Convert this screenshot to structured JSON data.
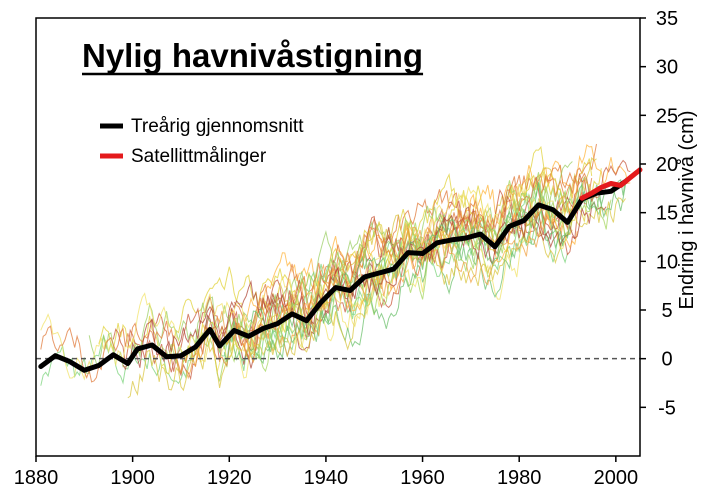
{
  "chart_data": {
    "type": "line",
    "title": "Nylig havnivåstigning",
    "xlabel": "",
    "ylabel": "Endring i havnivå (cm)",
    "xlim": [
      1880,
      2005
    ],
    "ylim": [
      -10,
      35
    ],
    "xticks": [
      1880,
      1900,
      1920,
      1940,
      1960,
      1980,
      2000
    ],
    "yticks": [
      -5,
      0,
      5,
      10,
      15,
      20,
      25,
      30,
      35
    ],
    "grid": false,
    "legend_position": "top-left",
    "zero_line": "dashed",
    "colors": {
      "average": "#000000",
      "satellite": "#e41a1c",
      "zero_line": "#555555",
      "frame": "#000000",
      "tide_gauges": [
        "#7bd37b",
        "#e0d23a",
        "#ffb43c",
        "#c85a3c",
        "#a4d65e",
        "#f2e36a",
        "#e07a3a",
        "#9ccf66",
        "#d9c640",
        "#f0a040",
        "#b0483a",
        "#6cc06c"
      ]
    },
    "series": [
      {
        "name": "Treårig gjennomsnitt",
        "x": [
          1881,
          1884,
          1887,
          1890,
          1893,
          1896,
          1899,
          1901,
          1904,
          1907,
          1910,
          1913,
          1916,
          1918,
          1921,
          1924,
          1927,
          1930,
          1933,
          1936,
          1939,
          1942,
          1945,
          1948,
          1951,
          1954,
          1957,
          1960,
          1963,
          1966,
          1969,
          1972,
          1975,
          1978,
          1981,
          1984,
          1987,
          1990,
          1993,
          1996,
          1999,
          2002
        ],
        "values": [
          -0.8,
          0.3,
          -0.3,
          -1.2,
          -0.7,
          0.4,
          -0.5,
          1.0,
          1.4,
          0.2,
          0.3,
          1.2,
          3.0,
          1.3,
          2.9,
          2.3,
          3.1,
          3.6,
          4.6,
          3.9,
          5.8,
          7.3,
          7.0,
          8.4,
          8.8,
          9.2,
          10.9,
          10.8,
          11.9,
          12.2,
          12.4,
          12.8,
          11.5,
          13.6,
          14.2,
          15.8,
          15.3,
          14.0,
          16.4,
          17.0,
          17.2,
          18.2
        ]
      },
      {
        "name": "Satellittmålinger",
        "x": [
          1993,
          1995,
          1997,
          1999,
          2001,
          2003,
          2005
        ],
        "values": [
          16.5,
          17.0,
          17.6,
          18.0,
          17.8,
          18.6,
          19.4
        ]
      }
    ]
  }
}
